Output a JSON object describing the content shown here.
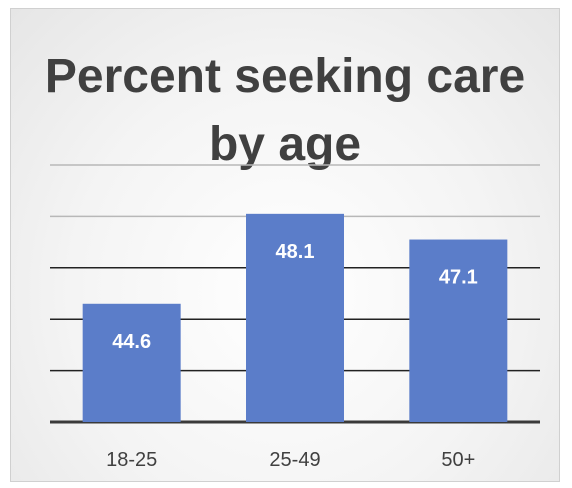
{
  "chart_data": {
    "type": "bar",
    "title": "Percent seeking care by age",
    "categories": [
      "18-25",
      "25-49",
      "50+"
    ],
    "values": [
      44.6,
      48.1,
      47.1
    ],
    "data_labels": [
      "44.6",
      "48.1",
      "47.1"
    ],
    "ylim": [
      40,
      50
    ],
    "grid": true,
    "bar_color": "#5b7dc9",
    "gridline_color": "#222222",
    "label_color": "#ffffff",
    "tick_color": "#404040"
  }
}
